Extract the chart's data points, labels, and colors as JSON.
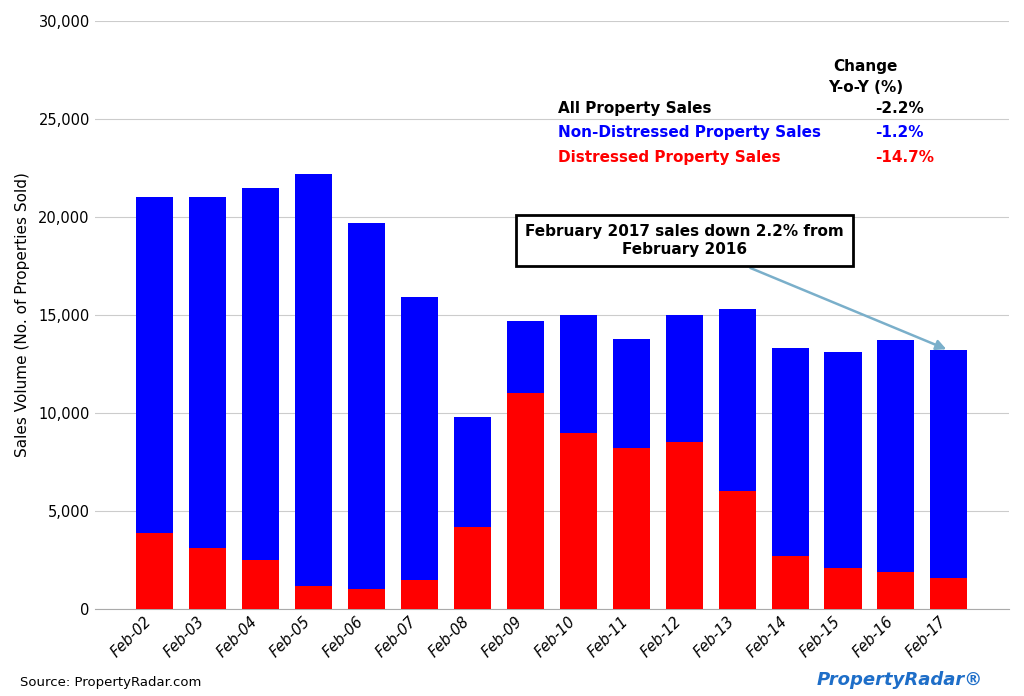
{
  "categories": [
    "Feb-02",
    "Feb-03",
    "Feb-04",
    "Feb-05",
    "Feb-06",
    "Feb-07",
    "Feb-08",
    "Feb-09",
    "Feb-10",
    "Feb-11",
    "Feb-12",
    "Feb-13",
    "Feb-14",
    "Feb-15",
    "Feb-16",
    "Feb-17"
  ],
  "non_distressed": [
    17100,
    17900,
    19000,
    21000,
    18700,
    14400,
    5600,
    3700,
    6000,
    5600,
    6500,
    9300,
    10600,
    11000,
    11800,
    11600
  ],
  "distressed": [
    3900,
    3100,
    2500,
    1200,
    1000,
    1500,
    4200,
    11000,
    9000,
    8200,
    8500,
    6000,
    2700,
    2100,
    1900,
    1600
  ],
  "blue_color": "#0000FF",
  "red_color": "#FF0000",
  "ylabel": "Sales Volume (No. of Properties Sold)",
  "ylim": [
    0,
    30000
  ],
  "yticks": [
    0,
    5000,
    10000,
    15000,
    20000,
    25000,
    30000
  ],
  "change_header": "Change",
  "change_subheader": "Y-o-Y (%)",
  "legend_all_label": "All Property Sales",
  "legend_all_change": "-2.2%",
  "legend_non_dist_label": "Non-Distressed Property Sales",
  "legend_non_dist_change": "-1.2%",
  "legend_dist_label": "Distressed Property Sales",
  "legend_dist_change": "-14.7%",
  "annotation_text": "February 2017 sales down 2.2% from\nFebruary 2016",
  "source_text": "Source: PropertyRadar.com",
  "background_color": "#FFFFFF"
}
